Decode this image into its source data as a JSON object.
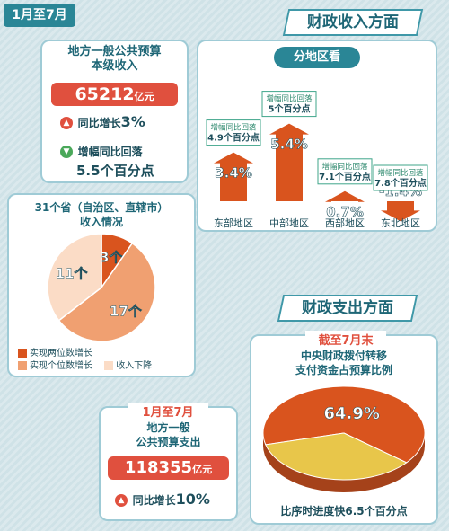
{
  "period_tag": "1月至7月",
  "revenue_banner": "财政收入方面",
  "local_revenue": {
    "title_line1": "地方一般公共预算",
    "title_line2": "本级收入",
    "amount_value": "65212",
    "amount_unit": "亿元",
    "growth_label": "同比增长",
    "growth_value": "3%",
    "growth_down_label": "增幅同比回落",
    "growth_down_value": "5.5个百分点"
  },
  "regional": {
    "header": "分地区看",
    "chart_data": {
      "type": "bar",
      "categories": [
        "东部地区",
        "中部地区",
        "西部地区",
        "东北地区"
      ],
      "values": [
        3.4,
        5.4,
        0.7,
        -1.4
      ],
      "value_labels": [
        "3.4%",
        "5.4%",
        "0.7%",
        "-1.4%"
      ],
      "annotations": [
        {
          "line1": "增幅同比回落",
          "line2": "4.9个百分点"
        },
        {
          "line1": "增幅同比回落",
          "line2": "5个百分点"
        },
        {
          "line1": "增幅同比回落",
          "line2": "7.1个百分点"
        },
        {
          "line1": "增幅同比回落",
          "line2": "7.8个百分点"
        }
      ],
      "colors": {
        "bar": "#d9541e"
      }
    }
  },
  "provinces": {
    "title_line1": "31个省（自治区、直辖市）",
    "title_line2": "收入情况",
    "chart_data": {
      "type": "pie",
      "slices": [
        {
          "label": "实现两位数增长",
          "value": 3,
          "display": "3个",
          "color": "#d9541e"
        },
        {
          "label": "实现个位数增长",
          "value": 17,
          "display": "17个",
          "color": "#f0a071"
        },
        {
          "label": "收入下降",
          "value": 11,
          "display": "11个",
          "color": "#fbdcc6"
        }
      ]
    }
  },
  "expenditure_banner": "财政支出方面",
  "transfer": {
    "tag": "截至7月末",
    "title_line1": "中央财政拨付转移",
    "title_line2": "支付资金占预算比例",
    "chart_data": {
      "type": "pie",
      "slices": [
        {
          "label": "拨付比例",
          "value": 64.9,
          "display": "64.9%",
          "color": "#d9541e"
        },
        {
          "label": "其余",
          "value": 35.1,
          "display": "",
          "color": "#e8c64a"
        }
      ]
    },
    "footnote": "比序时进度快6.5个百分点"
  },
  "local_expenditure": {
    "tag": "1月至7月",
    "title_line1": "地方一般",
    "title_line2": "公共预算支出",
    "amount_value": "118355",
    "amount_unit": "亿元",
    "growth_label": "同比增长",
    "growth_value": "10%"
  },
  "colors": {
    "teal": "#2a8696",
    "red": "#e0503e",
    "orange": "#d9541e",
    "yellow": "#e8c64a"
  },
  "icons": {
    "up": "arrow-up-icon",
    "down": "arrow-down-icon"
  }
}
